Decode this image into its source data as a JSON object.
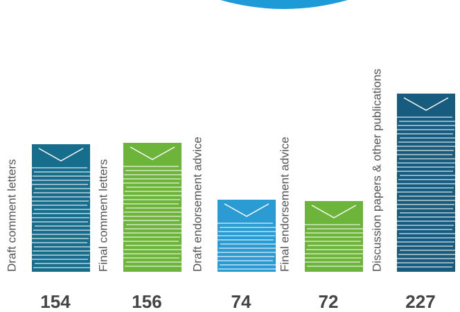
{
  "chart_data": {
    "type": "bar",
    "categories": [
      "Draft comment letters",
      "Final comment letters",
      "Draft endorsement advice",
      "Final endorsement advice",
      "Discussion papers & other publications"
    ],
    "values": [
      154,
      156,
      74,
      72,
      227
    ],
    "colors": [
      "#176d8c",
      "#6cb43a",
      "#2a9bd3",
      "#6cb43a",
      "#175c7e"
    ]
  }
}
